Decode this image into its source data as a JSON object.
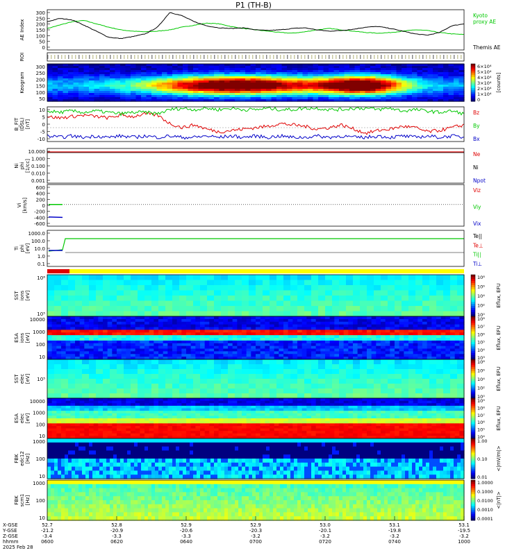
{
  "title": "P1 (TH-B)",
  "chart_data": [
    {
      "type": "line",
      "id": "ae",
      "ylabel": "AE Index",
      "ylim": [
        0,
        300
      ],
      "yticks": [
        "300",
        "250",
        "200",
        "150",
        "100",
        "50",
        "0"
      ],
      "series": [
        {
          "name": "Kyoto\nproxy AE",
          "color": "#00c800",
          "values": [
            160,
            185,
            210,
            220,
            195,
            170,
            150,
            140,
            135,
            140,
            150,
            170,
            185,
            200,
            195,
            175,
            160,
            150,
            140,
            130,
            125,
            135,
            150,
            160,
            150,
            140,
            130,
            125,
            130,
            140,
            150,
            145,
            130,
            120,
            115
          ]
        },
        {
          "name": "Themis AE",
          "color": "#000000",
          "values": [
            210,
            235,
            225,
            185,
            140,
            95,
            85,
            100,
            120,
            170,
            280,
            255,
            210,
            180,
            165,
            160,
            165,
            150,
            145,
            150,
            160,
            165,
            150,
            140,
            145,
            155,
            170,
            175,
            160,
            140,
            120,
            110,
            130,
            180,
            195
          ]
        }
      ]
    },
    {
      "type": "heatmap",
      "id": "roi",
      "ylabel": "ROI"
    },
    {
      "type": "heatmap",
      "id": "keogram",
      "ylabel": "Keogram",
      "yticks": [
        "300",
        "250",
        "200",
        "150",
        "100",
        "50"
      ],
      "colorbar_label": "[counts]",
      "colorbar_ticks": [
        "6×10⁴",
        "5×10⁴",
        "4×10⁴",
        "3×10⁴",
        "2×10⁴",
        "1×10⁴",
        "0"
      ]
    },
    {
      "type": "line",
      "id": "bfit",
      "ylabel": "B_FIT\n(DSL)\n[nT]",
      "ylim": [
        -15,
        10
      ],
      "yticks": [
        "10",
        "5",
        "0",
        "-5",
        "-10"
      ],
      "series": [
        {
          "name": "Bz",
          "color": "#e00000",
          "values": [
            3,
            2,
            3,
            4,
            3,
            2,
            4,
            3,
            5,
            4,
            -2,
            -5,
            -3,
            -6,
            -8,
            -7,
            -6,
            -5,
            -4,
            -2,
            -3,
            -4,
            -6,
            -5,
            -3,
            -6,
            -9,
            -7,
            -6,
            -4,
            -5,
            -8,
            -7,
            -5,
            -3
          ]
        },
        {
          "name": "By",
          "color": "#00c800",
          "values": [
            7,
            6,
            7,
            6,
            7,
            6,
            5,
            6,
            6,
            5,
            8,
            9,
            8,
            9,
            8,
            9,
            8,
            8,
            9,
            8,
            8,
            9,
            9,
            8,
            8,
            9,
            9,
            8,
            9,
            7,
            8,
            7,
            6,
            7,
            5
          ]
        },
        {
          "name": "Bx",
          "color": "#0000c8",
          "values": [
            -11,
            -12,
            -11,
            -12,
            -11,
            -12,
            -11,
            -12,
            -11,
            -12,
            -11,
            -12,
            -12,
            -11,
            -12,
            -11,
            -12,
            -11,
            -12,
            -11,
            -12,
            -12,
            -11,
            -12,
            -11,
            -12,
            -12,
            -11,
            -12,
            -11,
            -12,
            -11,
            -12,
            -11,
            -12
          ]
        }
      ]
    },
    {
      "type": "line",
      "id": "ni",
      "ylabel": "Ni\nphi\n[1/cc]",
      "yticks": [
        "10.000",
        "1.000",
        "0.100",
        "0.010",
        "0.001"
      ],
      "series": [
        {
          "name": "Ne",
          "color": "#e00000"
        },
        {
          "name": "Ni",
          "color": "#000000"
        },
        {
          "name": "Npot",
          "color": "#0000c8"
        }
      ]
    },
    {
      "type": "line",
      "id": "vi",
      "ylabel": "Vi\n[km/s]",
      "yticks": [
        "600",
        "400",
        "200",
        "0",
        "-200",
        "-400",
        "-600"
      ],
      "series": [
        {
          "name": "Viz",
          "color": "#e00000"
        },
        {
          "name": "Viy",
          "color": "#00c800"
        },
        {
          "name": "Vix",
          "color": "#0000c8"
        }
      ]
    },
    {
      "type": "line",
      "id": "ti",
      "ylabel": "Ti\nphi\n[eV]",
      "yticks": [
        "1000.0",
        "100.0",
        "10.0",
        "1.0",
        "0.1"
      ],
      "series": [
        {
          "name": "Te||",
          "color": "#000000"
        },
        {
          "name": "Te⊥",
          "color": "#e00000"
        },
        {
          "name": "Ti||",
          "color": "#00c800"
        },
        {
          "name": "Ti⊥",
          "color": "#0000c8"
        }
      ]
    },
    {
      "type": "heatmap",
      "id": "sst_i",
      "ylabel": "SST\nions\n[eV]",
      "yticks": [
        "10⁶",
        "10⁵"
      ],
      "colorbar_label": "Eflux, EFU",
      "colorbar_ticks": [
        "10⁸",
        "10⁶",
        "10⁴",
        "10²",
        "10⁰"
      ]
    },
    {
      "type": "heatmap",
      "id": "esa_i",
      "ylabel": "ESA\nions\n[eV]",
      "yticks": [
        "10000",
        "1000",
        "100",
        "10"
      ],
      "colorbar_label": "Eflux, EFU",
      "colorbar_ticks": [
        "10⁸",
        "10⁷",
        "10⁶",
        "10⁵",
        "10⁴",
        "10³"
      ]
    },
    {
      "type": "heatmap",
      "id": "sst_e",
      "ylabel": "SST\nelec\n[eV]",
      "yticks": [
        "10⁵"
      ],
      "colorbar_label": "Eflux, EFU",
      "colorbar_ticks": [
        "10⁸",
        "10⁶",
        "10⁴",
        "10²",
        "10⁰"
      ]
    },
    {
      "type": "heatmap",
      "id": "esa_e",
      "ylabel": "ESA\nelec\n[eV]",
      "yticks": [
        "10000",
        "1000",
        "100",
        "10"
      ],
      "colorbar_label": "Eflux, EFU",
      "colorbar_ticks": [
        "10⁹",
        "10⁸",
        "10⁷",
        "10⁶",
        "10⁵",
        "10⁴"
      ]
    },
    {
      "type": "heatmap",
      "id": "fbk_e",
      "ylabel": "FBK\nedc12\n[Hz]",
      "yticks": [
        "1000",
        "100",
        "10"
      ],
      "colorbar_label": "<|mV/m|>",
      "colorbar_ticks": [
        "1.00",
        "0.10",
        "0.01"
      ]
    },
    {
      "type": "heatmap",
      "id": "fbk_b",
      "ylabel": "FBK\nscm1\n[Hz]",
      "yticks": [
        "1000",
        "100",
        "10"
      ],
      "colorbar_label": "<|nT|>",
      "colorbar_ticks": [
        "1.0000",
        "0.1000",
        "0.0100",
        "0.0010",
        "0.0001"
      ]
    }
  ],
  "xaxis": {
    "rows": [
      "X-GSE",
      "Y-GSE",
      "Z-GSE",
      "hhmm",
      "2025 Feb 28"
    ],
    "ticks": [
      {
        "x": "52.7",
        "y": "-21.2",
        "z": "-3.4",
        "t": "0600"
      },
      {
        "x": "52.8",
        "y": "-20.9",
        "z": "-3.3",
        "t": "0620"
      },
      {
        "x": "52.9",
        "y": "-20.6",
        "z": "-3.3",
        "t": "0640"
      },
      {
        "x": "52.9",
        "y": "-20.3",
        "z": "-3.2",
        "t": "0700"
      },
      {
        "x": "53.0",
        "y": "-20.1",
        "z": "-3.2",
        "t": "0720"
      },
      {
        "x": "53.1",
        "y": "-19.8",
        "z": "-3.2",
        "t": "0740"
      },
      {
        "x": "53.1",
        "y": "-19.5",
        "z": "-3.2",
        "t": "1000"
      }
    ]
  }
}
